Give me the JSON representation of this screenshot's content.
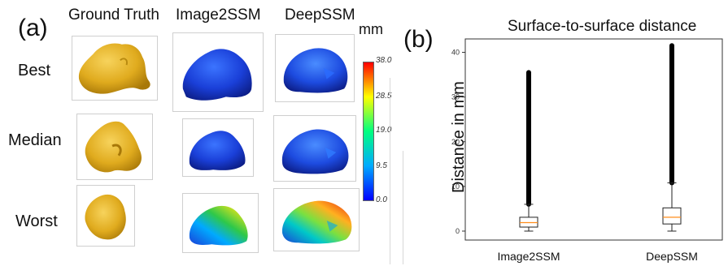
{
  "panel_a": {
    "label": "(a)",
    "columns": [
      "Ground Truth",
      "Image2SSM",
      "DeepSSM"
    ],
    "rows": [
      "Best",
      "Median",
      "Worst"
    ],
    "colorbar": {
      "unit": "mm",
      "ticks": [
        "38.0",
        "28.5",
        "19.0",
        "9.5",
        "0.0"
      ],
      "min": 0.0,
      "max": 38.0,
      "colormap": [
        "#0000ff",
        "#00aaff",
        "#00ff80",
        "#ffff00",
        "#ff0000"
      ]
    },
    "colors": {
      "ground_truth": "#e6b422",
      "error_low": "#1a3fd8"
    }
  },
  "panel_b": {
    "label": "(b)",
    "title": "Surface-to-surface distance",
    "ylabel": "Distance in mm",
    "categories": [
      "Image2SSM",
      "DeepSSM"
    ],
    "yticks": [
      "0",
      "10",
      "20",
      "30",
      "40"
    ]
  },
  "chart_data": {
    "type": "box",
    "title": "Surface-to-surface distance",
    "xlabel": "",
    "ylabel": "Distance in mm",
    "ylim": [
      -2,
      43
    ],
    "yticks": [
      0,
      10,
      20,
      30,
      40
    ],
    "categories": [
      "Image2SSM",
      "DeepSSM"
    ],
    "boxes": [
      {
        "category": "Image2SSM",
        "whisker_low": 0.0,
        "q1": 0.9,
        "median": 1.9,
        "q3": 3.1,
        "whisker_high": 6.0,
        "outliers_from": 6.0,
        "outliers_to": 35.5
      },
      {
        "category": "DeepSSM",
        "whisker_low": 0.0,
        "q1": 1.6,
        "median": 3.1,
        "q3": 5.2,
        "whisker_high": 10.8,
        "outliers_from": 10.8,
        "outliers_to": 41.5
      }
    ],
    "colors": {
      "median": "#ff8c1a",
      "box": "#222222",
      "outliers": "#000000"
    }
  }
}
